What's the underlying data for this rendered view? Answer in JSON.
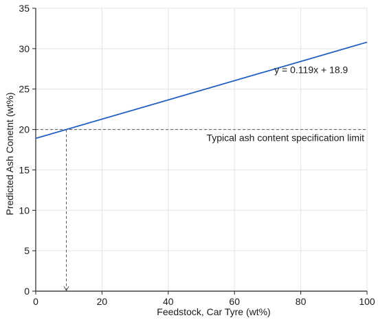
{
  "chart_data": {
    "type": "line",
    "title": "",
    "xlabel": "Feedstock, Car Tyre (wt%)",
    "ylabel": "Predicted Ash Conetnt (wt%)",
    "xlim": [
      0,
      100
    ],
    "ylim": [
      0,
      35
    ],
    "xticks": [
      0,
      20,
      40,
      60,
      80,
      100
    ],
    "yticks": [
      0,
      5,
      10,
      15,
      20,
      25,
      30,
      35
    ],
    "xtick_labels": [
      "0",
      "20",
      "40",
      "60",
      "80",
      "100"
    ],
    "ytick_labels": [
      "0",
      "5",
      "10",
      "15",
      "20",
      "25",
      "30",
      "35"
    ],
    "grid": true,
    "series": [
      {
        "x": [
          0,
          100
        ],
        "y": [
          18.9,
          30.8
        ],
        "color": "#1f5fbf"
      }
    ],
    "equation_label": "y = 0.119x + 18.9",
    "reference_line": {
      "y": 20,
      "label": "Typical ash content specification limit",
      "color": "#555555"
    },
    "intersection": {
      "x": 9.24,
      "y": 20
    }
  }
}
